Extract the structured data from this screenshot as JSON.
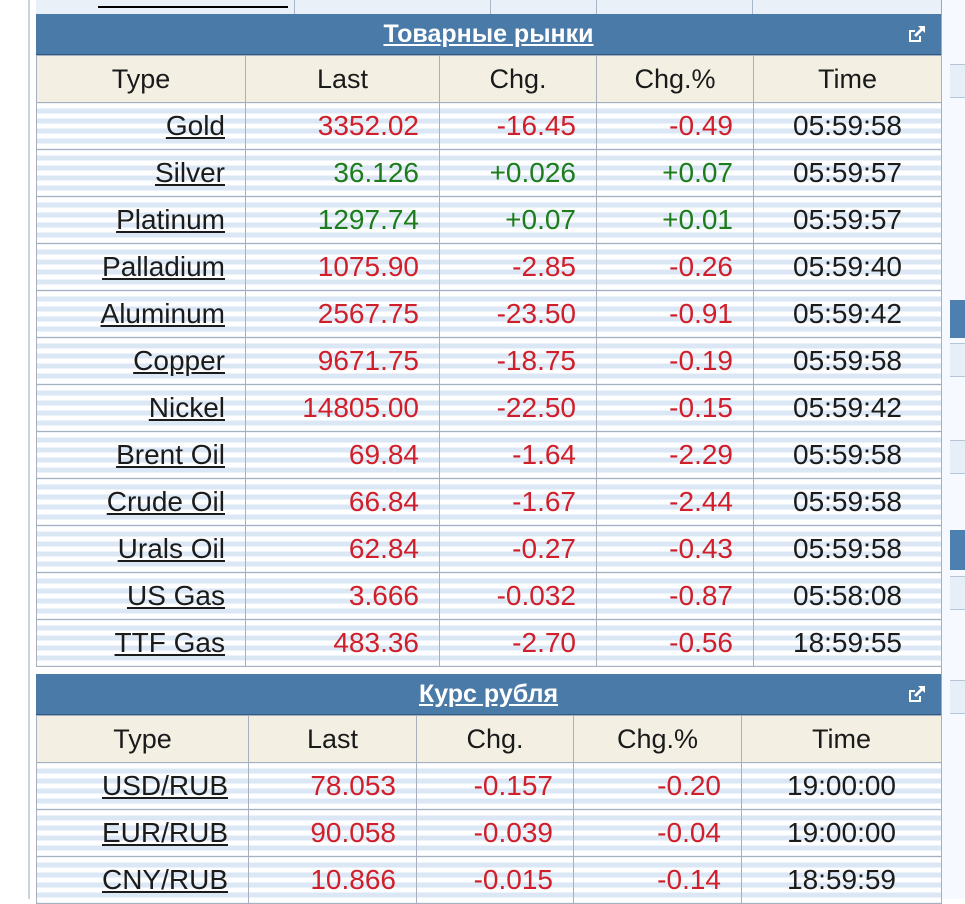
{
  "colors": {
    "header_bg": "#4a7aa8",
    "up": "#1d7d1d",
    "down": "#d01f2a",
    "column_header_bg": "#f3f0e3"
  },
  "commodities": {
    "title": "Товарные рынки",
    "expand_icon": "external-link-icon",
    "columns": [
      "Type",
      "Last",
      "Chg.",
      "Chg.%",
      "Time"
    ],
    "rows": [
      {
        "type": "Gold",
        "last": "3352.02",
        "chg": "-16.45",
        "pct": "-0.49",
        "time": "05:59:58",
        "dir": "down"
      },
      {
        "type": "Silver",
        "last": "36.126",
        "chg": "+0.026",
        "pct": "+0.07",
        "time": "05:59:57",
        "dir": "up"
      },
      {
        "type": "Platinum",
        "last": "1297.74",
        "chg": "+0.07",
        "pct": "+0.01",
        "time": "05:59:57",
        "dir": "up"
      },
      {
        "type": "Palladium",
        "last": "1075.90",
        "chg": "-2.85",
        "pct": "-0.26",
        "time": "05:59:40",
        "dir": "down"
      },
      {
        "type": "Aluminum",
        "last": "2567.75",
        "chg": "-23.50",
        "pct": "-0.91",
        "time": "05:59:42",
        "dir": "down"
      },
      {
        "type": "Copper",
        "last": "9671.75",
        "chg": "-18.75",
        "pct": "-0.19",
        "time": "05:59:58",
        "dir": "down"
      },
      {
        "type": "Nickel",
        "last": "14805.00",
        "chg": "-22.50",
        "pct": "-0.15",
        "time": "05:59:42",
        "dir": "down"
      },
      {
        "type": "Brent Oil",
        "last": "69.84",
        "chg": "-1.64",
        "pct": "-2.29",
        "time": "05:59:58",
        "dir": "down"
      },
      {
        "type": "Crude Oil",
        "last": "66.84",
        "chg": "-1.67",
        "pct": "-2.44",
        "time": "05:59:58",
        "dir": "down"
      },
      {
        "type": "Urals Oil",
        "last": "62.84",
        "chg": "-0.27",
        "pct": "-0.43",
        "time": "05:59:58",
        "dir": "down"
      },
      {
        "type": "US Gas",
        "last": "3.666",
        "chg": "-0.032",
        "pct": "-0.87",
        "time": "05:58:08",
        "dir": "down"
      },
      {
        "type": "TTF Gas",
        "last": "483.36",
        "chg": "-2.70",
        "pct": "-0.56",
        "time": "18:59:55",
        "dir": "down"
      }
    ]
  },
  "ruble": {
    "title": "Курс рубля",
    "expand_icon": "external-link-icon",
    "columns": [
      "Type",
      "Last",
      "Chg.",
      "Chg.%",
      "Time"
    ],
    "rows": [
      {
        "type": "USD/RUB",
        "last": "78.053",
        "chg": "-0.157",
        "pct": "-0.20",
        "time": "19:00:00",
        "dir": "down"
      },
      {
        "type": "EUR/RUB",
        "last": "90.058",
        "chg": "-0.039",
        "pct": "-0.04",
        "time": "19:00:00",
        "dir": "down"
      },
      {
        "type": "CNY/RUB",
        "last": "10.866",
        "chg": "-0.015",
        "pct": "-0.14",
        "time": "18:59:59",
        "dir": "down"
      }
    ]
  }
}
